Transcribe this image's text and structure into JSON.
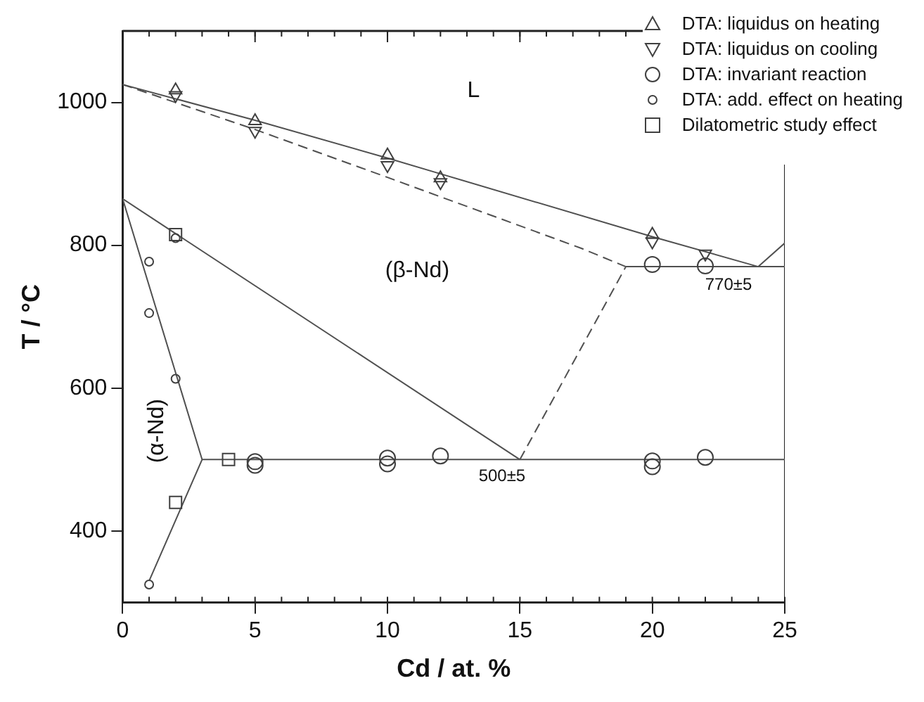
{
  "chart_data": {
    "type": "scatter",
    "xlabel": "Cd / at. %",
    "ylabel": "T / °C",
    "xlim": [
      0,
      25
    ],
    "xticks": [
      0,
      5,
      10,
      15,
      20,
      25
    ],
    "ylim": [
      300,
      1100
    ],
    "yticks": [
      400,
      600,
      800,
      1000
    ],
    "grid": false,
    "legend": "top right",
    "series": [
      {
        "name": "DTA: liquidus on heating",
        "marker": "triangle",
        "color": "#404040",
        "x": [
          2,
          5,
          10,
          12,
          20
        ],
        "values": [
          1017,
          974,
          926,
          894,
          815
        ]
      },
      {
        "name": "DTA: liquidus on cooling",
        "marker": "triangle-down",
        "color": "#404040",
        "x": [
          2,
          5,
          10,
          12,
          20,
          22
        ],
        "values": [
          1010,
          960,
          912,
          888,
          805,
          788
        ]
      },
      {
        "name": "DTA: invariant reaction",
        "marker": "circle",
        "color": "#404040",
        "x": [
          5,
          5,
          10,
          10,
          12,
          20,
          20,
          22,
          20,
          22
        ],
        "values": [
          497,
          492,
          502,
          494,
          505,
          498,
          490,
          503,
          773,
          771
        ]
      },
      {
        "name": "DTA: add. effect on heating",
        "marker": "circle-small",
        "color": "#404040",
        "x": [
          1,
          1,
          2,
          2,
          1
        ],
        "values": [
          777,
          705,
          810,
          613,
          325
        ]
      },
      {
        "name": "Dilatometric study effect",
        "marker": "square",
        "color": "#404040",
        "x": [
          2,
          4,
          2
        ],
        "values": [
          815,
          500,
          440
        ]
      },
      {
        "type": "line",
        "marker": "none",
        "line_style": "solid",
        "color": "#505050",
        "x": [
          0,
          5,
          10,
          12,
          20,
          24
        ],
        "values": [
          1025,
          975,
          922,
          900,
          812,
          770
        ]
      },
      {
        "type": "line",
        "marker": "none",
        "line_style": "dashed",
        "color": "#505050",
        "x": [
          0,
          5,
          10,
          17.3,
          19
        ],
        "values": [
          1025,
          962,
          895,
          796,
          770
        ]
      },
      {
        "type": "line",
        "marker": "none",
        "line_style": "dashed",
        "color": "#505050",
        "x": [
          15,
          19
        ],
        "values": [
          500,
          770
        ]
      },
      {
        "type": "line",
        "marker": "none",
        "line_style": "solid",
        "color": "#505050",
        "x": [
          0,
          15
        ],
        "values": [
          865,
          500
        ]
      },
      {
        "type": "line",
        "marker": "none",
        "line_style": "solid",
        "color": "#505050",
        "x": [
          0,
          3,
          1
        ],
        "values": [
          865,
          500,
          330
        ]
      },
      {
        "type": "line",
        "marker": "none",
        "line_style": "solid",
        "color": "#505050",
        "x": [
          3,
          25
        ],
        "values": [
          500,
          500
        ]
      },
      {
        "type": "line",
        "marker": "none",
        "line_style": "solid",
        "color": "#505050",
        "x": [
          19,
          25
        ],
        "values": [
          770,
          770
        ]
      },
      {
        "type": "line",
        "marker": "none",
        "line_style": "solid",
        "color": "#505050",
        "x": [
          24,
          25
        ],
        "values": [
          770,
          803
        ]
      },
      {
        "type": "line",
        "marker": "none",
        "line_style": "solid",
        "color": "#202020",
        "x": [
          25,
          25
        ],
        "values": [
          300,
          913
        ]
      }
    ],
    "annotations": [
      "L",
      "(β-Nd)",
      "(α-Nd)",
      "770±5",
      "500±5"
    ]
  }
}
